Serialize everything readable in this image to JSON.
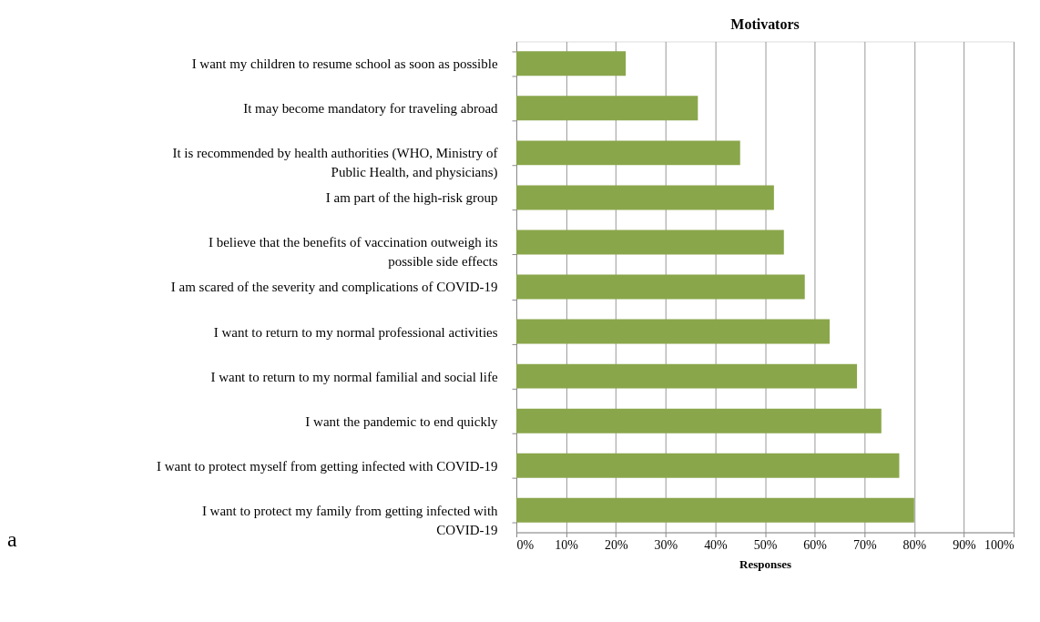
{
  "chart_data": {
    "type": "bar",
    "orientation": "horizontal",
    "title": "Motivators",
    "xlabel": "Responses",
    "categories": [
      "I want my children to resume school as soon as possible",
      "It may become mandatory for traveling abroad",
      "It is recommended by health authorities (WHO, Ministry of Public Health, and physicians)",
      "I am part of the high-risk group",
      "I believe that the benefits of vaccination outweigh its possible side effects",
      "I am scared of the severity and complications of COVID-19",
      "I want to return to my normal professional activities",
      "I want to return to my normal familial and social life",
      "I want the pandemic to end quickly",
      "I want to protect myself from getting infected with COVID-19",
      "I want to protect my family from getting infected with COVID-19"
    ],
    "values": [
      22,
      36.5,
      45,
      51.8,
      53.8,
      58,
      63,
      68.5,
      73.4,
      77,
      80
    ],
    "color": "#8aa64b",
    "xlim": [
      0,
      100
    ],
    "xticks": [
      {
        "value": 0,
        "label": "0%"
      },
      {
        "value": 10,
        "label": "10%"
      },
      {
        "value": 20,
        "label": "20%"
      },
      {
        "value": 30,
        "label": "30%"
      },
      {
        "value": 40,
        "label": "40%"
      },
      {
        "value": 50,
        "label": "50%"
      },
      {
        "value": 60,
        "label": "60%"
      },
      {
        "value": 70,
        "label": "70%"
      },
      {
        "value": 80,
        "label": "80%"
      },
      {
        "value": 90,
        "label": "90%"
      },
      {
        "value": 100,
        "label": "100%"
      }
    ],
    "grid": "x",
    "annotations": [
      "a"
    ]
  }
}
